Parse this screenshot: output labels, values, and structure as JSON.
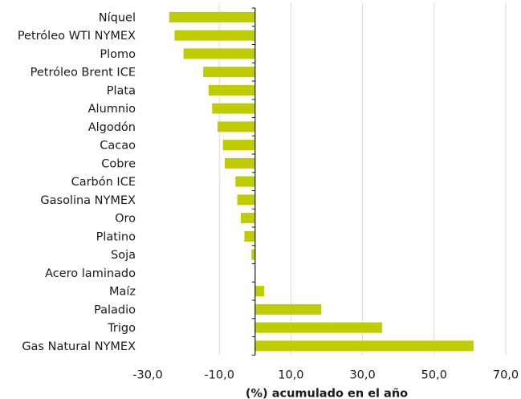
{
  "chart_data": {
    "type": "bar",
    "orientation": "horizontal",
    "categories": [
      "Níquel",
      "Petróleo WTI NYMEX",
      "Plomo",
      "Petróleo Brent ICE",
      "Plata",
      "Alumnio",
      "Algodón",
      "Cacao",
      "Cobre",
      "Carbón ICE",
      "Gasolina NYMEX",
      "Oro",
      "Platino",
      "Soja",
      "Acero laminado",
      "Maíz",
      "Paladio",
      "Trigo",
      "Gas Natural NYMEX"
    ],
    "values": [
      -24.0,
      -22.5,
      -20.0,
      -14.5,
      -13.0,
      -12.0,
      -10.5,
      -9.0,
      -8.5,
      -5.5,
      -5.0,
      -4.0,
      -3.0,
      -1.0,
      0.0,
      2.5,
      18.5,
      35.5,
      61.0
    ],
    "xlabel": "(%) acumulado en el año",
    "xlim": [
      -30,
      70
    ],
    "xticks": [
      "-30,0",
      "-10,0",
      "10,0",
      "30,0",
      "50,0",
      "70,0"
    ],
    "grid": true,
    "bar_color": "#bfcc00"
  }
}
